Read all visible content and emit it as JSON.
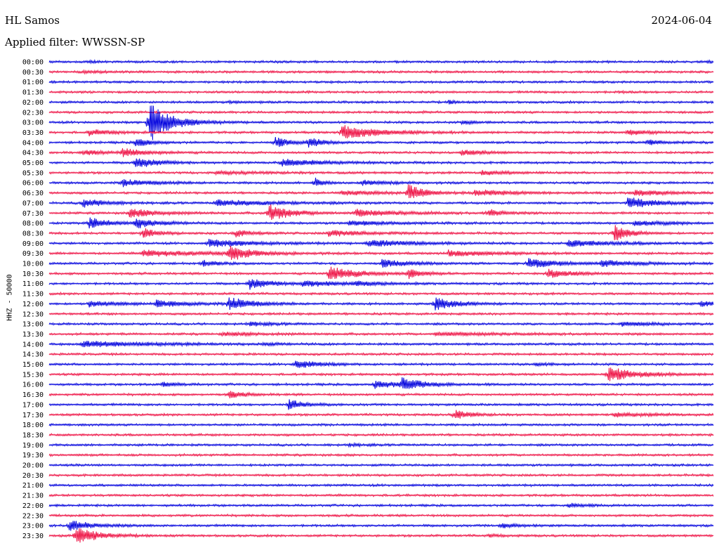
{
  "header": {
    "station": "HL Samos",
    "date": "2024-06-04",
    "filter": "Applied filter: WWSSN-SP"
  },
  "chart_data": {
    "type": "line",
    "title": "HL Samos",
    "ylabel": "HHZ - 50000",
    "colors": {
      "even_trace": "#0000dd",
      "odd_trace": "#ee1144"
    },
    "traces": [
      {
        "label": "00:00",
        "events": [
          {
            "t": 0.06,
            "a": 0.25,
            "d": 0.01
          },
          {
            "t": 0.99,
            "a": 0.25,
            "d": 0.01
          }
        ]
      },
      {
        "label": "00:30",
        "events": [
          {
            "t": 0.05,
            "a": 0.2,
            "d": 0.04
          }
        ]
      },
      {
        "label": "01:00",
        "events": []
      },
      {
        "label": "01:30",
        "events": [
          {
            "t": 0.86,
            "a": 0.2,
            "d": 0.01
          }
        ]
      },
      {
        "label": "02:00",
        "events": [
          {
            "t": 0.27,
            "a": 0.2,
            "d": 0.02
          },
          {
            "t": 0.6,
            "a": 0.5,
            "d": 0.01
          }
        ]
      },
      {
        "label": "02:30",
        "events": [
          {
            "t": 0.56,
            "a": 0.2,
            "d": 0.01
          }
        ]
      },
      {
        "label": "03:00",
        "events": [
          {
            "t": 0.15,
            "a": 6,
            "d": 0.03
          },
          {
            "t": 0.62,
            "a": 0.4,
            "d": 0.02
          }
        ]
      },
      {
        "label": "03:30",
        "events": [
          {
            "t": 0.06,
            "a": 0.8,
            "d": 0.03
          },
          {
            "t": 0.44,
            "a": 2,
            "d": 0.05
          },
          {
            "t": 0.87,
            "a": 0.7,
            "d": 0.03
          }
        ]
      },
      {
        "label": "04:00",
        "events": [
          {
            "t": 0.13,
            "a": 1.2,
            "d": 0.02
          },
          {
            "t": 0.34,
            "a": 1.4,
            "d": 0.02
          },
          {
            "t": 0.39,
            "a": 1.3,
            "d": 0.02
          },
          {
            "t": 0.9,
            "a": 0.8,
            "d": 0.02
          }
        ]
      },
      {
        "label": "04:30",
        "events": [
          {
            "t": 0.05,
            "a": 0.5,
            "d": 0.05
          },
          {
            "t": 0.11,
            "a": 1,
            "d": 0.03
          },
          {
            "t": 0.62,
            "a": 0.7,
            "d": 0.03
          }
        ]
      },
      {
        "label": "05:00",
        "events": [
          {
            "t": 0.13,
            "a": 1.5,
            "d": 0.03
          },
          {
            "t": 0.35,
            "a": 1,
            "d": 0.05
          }
        ]
      },
      {
        "label": "05:30",
        "events": [
          {
            "t": 0.25,
            "a": 0.3,
            "d": 0.08
          },
          {
            "t": 0.65,
            "a": 0.6,
            "d": 0.03
          }
        ]
      },
      {
        "label": "06:00",
        "events": [
          {
            "t": 0.11,
            "a": 1,
            "d": 0.04
          },
          {
            "t": 0.4,
            "a": 1.5,
            "d": 0.01
          },
          {
            "t": 0.47,
            "a": 0.6,
            "d": 0.04
          }
        ]
      },
      {
        "label": "06:30",
        "events": [
          {
            "t": 0.44,
            "a": 0.5,
            "d": 0.06
          },
          {
            "t": 0.54,
            "a": 2.5,
            "d": 0.02
          },
          {
            "t": 0.64,
            "a": 0.8,
            "d": 0.05
          },
          {
            "t": 0.88,
            "a": 0.8,
            "d": 0.04
          }
        ]
      },
      {
        "label": "07:00",
        "events": [
          {
            "t": 0.05,
            "a": 1.2,
            "d": 0.03
          },
          {
            "t": 0.25,
            "a": 0.8,
            "d": 0.08
          },
          {
            "t": 0.87,
            "a": 1.5,
            "d": 0.04
          }
        ]
      },
      {
        "label": "07:30",
        "events": [
          {
            "t": 0.12,
            "a": 1.2,
            "d": 0.04
          },
          {
            "t": 0.33,
            "a": 2.5,
            "d": 0.03
          },
          {
            "t": 0.46,
            "a": 0.9,
            "d": 0.06
          },
          {
            "t": 0.66,
            "a": 1,
            "d": 0.02
          }
        ]
      },
      {
        "label": "08:00",
        "events": [
          {
            "t": 0.06,
            "a": 1.5,
            "d": 0.03
          },
          {
            "t": 0.13,
            "a": 1.3,
            "d": 0.03
          },
          {
            "t": 0.45,
            "a": 0.6,
            "d": 0.05
          },
          {
            "t": 0.88,
            "a": 0.6,
            "d": 0.05
          }
        ]
      },
      {
        "label": "08:30",
        "events": [
          {
            "t": 0.14,
            "a": 1.4,
            "d": 0.02
          },
          {
            "t": 0.28,
            "a": 1,
            "d": 0.02
          },
          {
            "t": 0.42,
            "a": 0.8,
            "d": 0.05
          },
          {
            "t": 0.85,
            "a": 2.3,
            "d": 0.02
          }
        ]
      },
      {
        "label": "09:00",
        "events": [
          {
            "t": 0.24,
            "a": 1,
            "d": 0.06
          },
          {
            "t": 0.48,
            "a": 0.9,
            "d": 0.06
          },
          {
            "t": 0.78,
            "a": 0.9,
            "d": 0.06
          }
        ]
      },
      {
        "label": "09:30",
        "events": [
          {
            "t": 0.14,
            "a": 0.8,
            "d": 0.09
          },
          {
            "t": 0.27,
            "a": 2,
            "d": 0.03
          },
          {
            "t": 0.6,
            "a": 0.8,
            "d": 0.06
          }
        ]
      },
      {
        "label": "10:00",
        "events": [
          {
            "t": 0.23,
            "a": 0.8,
            "d": 0.02
          },
          {
            "t": 0.5,
            "a": 1,
            "d": 0.04
          },
          {
            "t": 0.72,
            "a": 1.3,
            "d": 0.04
          },
          {
            "t": 0.83,
            "a": 0.8,
            "d": 0.05
          }
        ]
      },
      {
        "label": "10:30",
        "events": [
          {
            "t": 0.42,
            "a": 2,
            "d": 0.04
          },
          {
            "t": 0.54,
            "a": 1.2,
            "d": 0.02
          },
          {
            "t": 0.75,
            "a": 1.3,
            "d": 0.03
          }
        ]
      },
      {
        "label": "11:00",
        "events": [
          {
            "t": 0.3,
            "a": 1.5,
            "d": 0.03
          },
          {
            "t": 0.38,
            "a": 0.8,
            "d": 0.05
          },
          {
            "t": 0.46,
            "a": 0.6,
            "d": 0.03
          }
        ]
      },
      {
        "label": "11:30",
        "events": []
      },
      {
        "label": "12:00",
        "events": [
          {
            "t": 0.06,
            "a": 0.8,
            "d": 0.04
          },
          {
            "t": 0.16,
            "a": 0.9,
            "d": 0.04
          },
          {
            "t": 0.27,
            "a": 2,
            "d": 0.03
          },
          {
            "t": 0.58,
            "a": 1.8,
            "d": 0.03
          },
          {
            "t": 0.98,
            "a": 0.8,
            "d": 0.02
          }
        ]
      },
      {
        "label": "12:30",
        "events": []
      },
      {
        "label": "13:00",
        "events": [
          {
            "t": 0.3,
            "a": 0.5,
            "d": 0.03
          },
          {
            "t": 0.86,
            "a": 0.6,
            "d": 0.04
          }
        ]
      },
      {
        "label": "13:30",
        "events": [
          {
            "t": 0.26,
            "a": 0.4,
            "d": 0.06
          },
          {
            "t": 0.58,
            "a": 0.4,
            "d": 0.1
          }
        ]
      },
      {
        "label": "14:00",
        "events": [
          {
            "t": 0.05,
            "a": 0.8,
            "d": 0.1
          },
          {
            "t": 0.32,
            "a": 0.3,
            "d": 0.02
          }
        ]
      },
      {
        "label": "14:30",
        "events": []
      },
      {
        "label": "15:00",
        "events": [
          {
            "t": 0.37,
            "a": 1.2,
            "d": 0.03
          },
          {
            "t": 0.73,
            "a": 0.4,
            "d": 0.02
          }
        ]
      },
      {
        "label": "15:30",
        "events": [
          {
            "t": 0.84,
            "a": 2,
            "d": 0.04
          }
        ]
      },
      {
        "label": "16:00",
        "events": [
          {
            "t": 0.17,
            "a": 0.6,
            "d": 0.02
          },
          {
            "t": 0.49,
            "a": 1,
            "d": 0.04
          },
          {
            "t": 0.53,
            "a": 1.5,
            "d": 0.03
          }
        ]
      },
      {
        "label": "16:30",
        "events": [
          {
            "t": 0.27,
            "a": 1,
            "d": 0.02
          }
        ]
      },
      {
        "label": "17:00",
        "events": [
          {
            "t": 0.36,
            "a": 1.5,
            "d": 0.02
          }
        ]
      },
      {
        "label": "17:30",
        "events": [
          {
            "t": 0.61,
            "a": 1.4,
            "d": 0.02
          },
          {
            "t": 0.85,
            "a": 0.5,
            "d": 0.05
          }
        ]
      },
      {
        "label": "18:00",
        "events": []
      },
      {
        "label": "18:30",
        "events": []
      },
      {
        "label": "19:00",
        "events": [
          {
            "t": 0.45,
            "a": 0.3,
            "d": 0.02
          }
        ]
      },
      {
        "label": "19:30",
        "events": []
      },
      {
        "label": "20:00",
        "events": []
      },
      {
        "label": "20:30",
        "events": []
      },
      {
        "label": "21:00",
        "events": []
      },
      {
        "label": "21:30",
        "events": []
      },
      {
        "label": "22:00",
        "events": [
          {
            "t": 0.78,
            "a": 0.6,
            "d": 0.02
          }
        ]
      },
      {
        "label": "22:30",
        "events": []
      },
      {
        "label": "23:00",
        "events": [
          {
            "t": 0.03,
            "a": 1.5,
            "d": 0.03
          },
          {
            "t": 0.68,
            "a": 0.8,
            "d": 0.02
          }
        ]
      },
      {
        "label": "23:30",
        "events": [
          {
            "t": 0.04,
            "a": 2.5,
            "d": 0.03
          },
          {
            "t": 0.66,
            "a": 0.3,
            "d": 0.02
          }
        ]
      }
    ]
  }
}
